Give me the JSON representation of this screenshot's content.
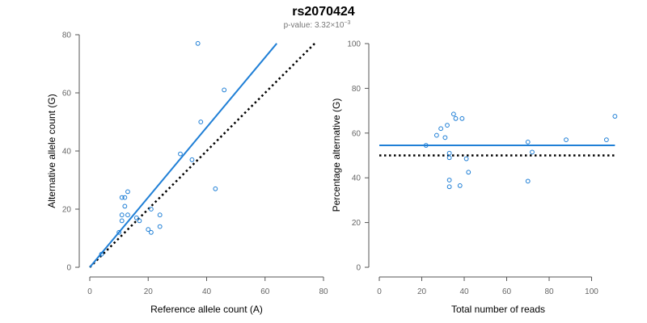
{
  "title": "rs2070424",
  "subtitle": {
    "label": "p-value:",
    "mantissa": "3.32",
    "times": "×",
    "base": "10",
    "exponent": "−3"
  },
  "colors": {
    "points": "#1f7fd6",
    "fit_line": "#1f7fd6",
    "reference_line": "#000000",
    "axis": "#555555",
    "tick_text": "#666666"
  },
  "chart_data": [
    {
      "type": "scatter",
      "xlabel": "Reference allele count (A)",
      "ylabel": "Alternative allele count (G)",
      "xlim": [
        0,
        80
      ],
      "ylim": [
        0,
        80
      ],
      "xticks": [
        0,
        20,
        40,
        60,
        80
      ],
      "yticks": [
        0,
        20,
        40,
        60,
        80
      ],
      "points": [
        {
          "x": 4,
          "y": 4.5
        },
        {
          "x": 10,
          "y": 12
        },
        {
          "x": 11,
          "y": 16
        },
        {
          "x": 11,
          "y": 18
        },
        {
          "x": 11,
          "y": 24
        },
        {
          "x": 12,
          "y": 21
        },
        {
          "x": 12,
          "y": 24
        },
        {
          "x": 13,
          "y": 18
        },
        {
          "x": 13,
          "y": 26
        },
        {
          "x": 16,
          "y": 17
        },
        {
          "x": 17,
          "y": 16
        },
        {
          "x": 20,
          "y": 13
        },
        {
          "x": 21,
          "y": 12
        },
        {
          "x": 21,
          "y": 20
        },
        {
          "x": 24,
          "y": 14
        },
        {
          "x": 24,
          "y": 18
        },
        {
          "x": 31,
          "y": 39
        },
        {
          "x": 35,
          "y": 37
        },
        {
          "x": 37,
          "y": 77
        },
        {
          "x": 38,
          "y": 50
        },
        {
          "x": 43,
          "y": 27
        },
        {
          "x": 46,
          "y": 61
        }
      ],
      "fit_line": {
        "x": [
          0,
          64
        ],
        "y": [
          0,
          77
        ],
        "style": "solid"
      },
      "reference_line": {
        "x": [
          0,
          77
        ],
        "y": [
          0,
          77
        ],
        "style": "dotted"
      }
    },
    {
      "type": "scatter",
      "xlabel": "Total number of reads",
      "ylabel": "Percentage alternative (G)",
      "xlim": [
        0,
        112
      ],
      "ylim": [
        0,
        100
      ],
      "xticks": [
        0,
        20,
        40,
        60,
        80,
        100
      ],
      "yticks": [
        0,
        20,
        40,
        60,
        80,
        100
      ],
      "points": [
        {
          "x": 22,
          "y": 54.5
        },
        {
          "x": 27,
          "y": 59
        },
        {
          "x": 29,
          "y": 62
        },
        {
          "x": 31,
          "y": 58
        },
        {
          "x": 32,
          "y": 63.5
        },
        {
          "x": 33,
          "y": 51
        },
        {
          "x": 33,
          "y": 49
        },
        {
          "x": 33,
          "y": 39
        },
        {
          "x": 33,
          "y": 36
        },
        {
          "x": 35,
          "y": 68.5
        },
        {
          "x": 36,
          "y": 66.5
        },
        {
          "x": 38,
          "y": 36.5
        },
        {
          "x": 39,
          "y": 66.5
        },
        {
          "x": 41,
          "y": 48.5
        },
        {
          "x": 42,
          "y": 42.5
        },
        {
          "x": 70,
          "y": 38.5
        },
        {
          "x": 70,
          "y": 56
        },
        {
          "x": 72,
          "y": 51.5
        },
        {
          "x": 88,
          "y": 57
        },
        {
          "x": 107,
          "y": 57
        },
        {
          "x": 111,
          "y": 67.5
        }
      ],
      "fit_line": {
        "x": [
          0,
          111
        ],
        "y": [
          54.5,
          54.5
        ],
        "style": "solid"
      },
      "reference_line": {
        "x": [
          0,
          111
        ],
        "y": [
          50,
          50
        ],
        "style": "dotted"
      }
    }
  ]
}
